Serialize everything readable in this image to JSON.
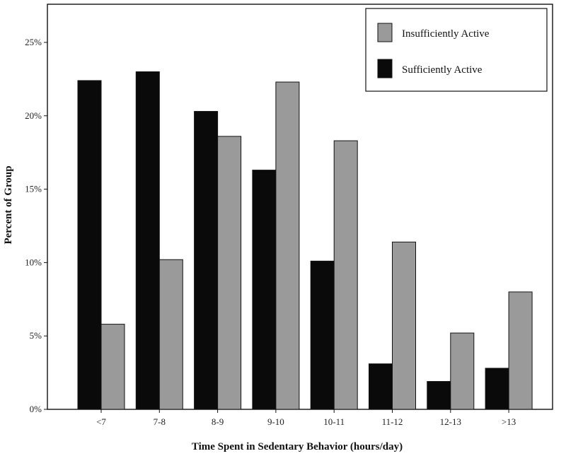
{
  "chart_data": {
    "type": "bar",
    "title": "",
    "xlabel": "Time Spent in Sedentary Behavior (hours/day)",
    "ylabel": "Percent of Group",
    "categories": [
      "<7",
      "7-8",
      "8-9",
      "9-10",
      "10-11",
      "11-12",
      "12-13",
      ">13"
    ],
    "yticks": [
      "0%",
      "5%",
      "10%",
      "15%",
      "20%",
      "25%"
    ],
    "ylim": [
      0,
      25
    ],
    "grid": false,
    "legend_position": "top-right",
    "series": [
      {
        "name": "Sufficiently Active",
        "color": "#0a0a0a",
        "values": [
          22.4,
          23.0,
          20.3,
          16.3,
          10.1,
          3.1,
          1.9,
          2.8
        ]
      },
      {
        "name": "Insufficiently Active",
        "color": "#9a9a9a",
        "values": [
          5.8,
          10.2,
          18.6,
          22.3,
          18.3,
          11.4,
          5.2,
          8.0
        ]
      }
    ],
    "legend_order": [
      "Insufficiently Active",
      "Sufficiently Active"
    ]
  }
}
